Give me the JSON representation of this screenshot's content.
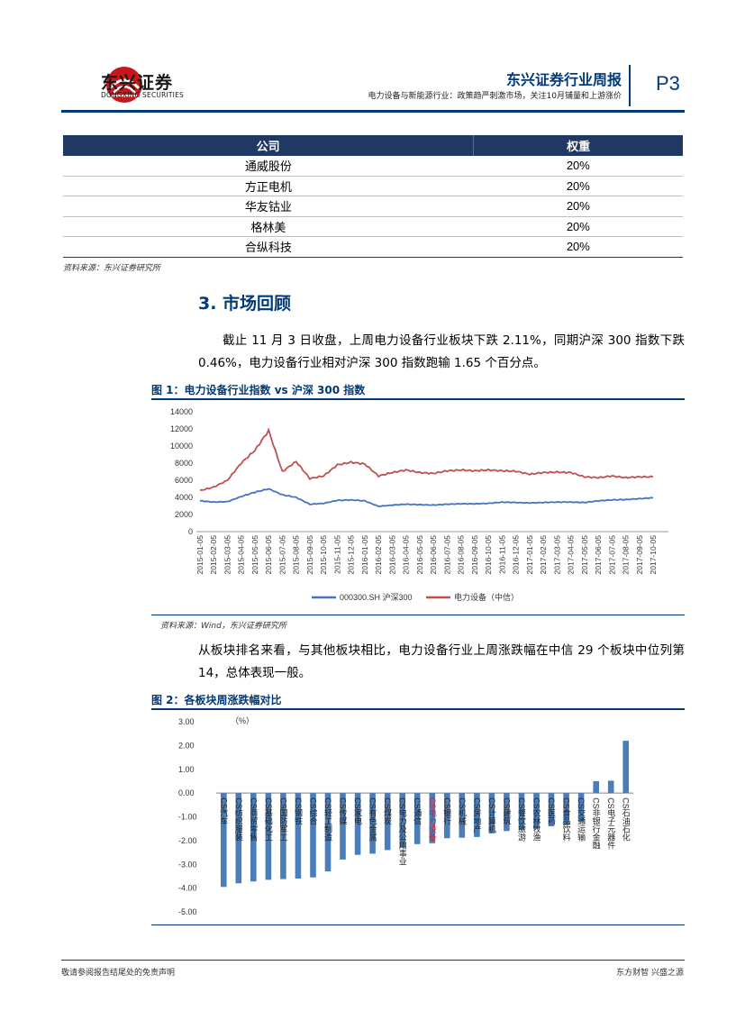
{
  "header": {
    "logo_cn": "东兴证券",
    "logo_en": "DONGXING SECURITIES",
    "title": "东兴证券行业周报",
    "subtitle": "电力设备与新能源行业：政策趋严刺激市场，关注10月铺量和上游涨价",
    "page": "P3",
    "brand_color": "#c8161d",
    "accent_color": "#003a78"
  },
  "table": {
    "headers": [
      "公司",
      "权重"
    ],
    "rows": [
      [
        "通威股份",
        "20%"
      ],
      [
        "方正电机",
        "20%"
      ],
      [
        "华友钴业",
        "20%"
      ],
      [
        "格林美",
        "20%"
      ],
      [
        "合纵科技",
        "20%"
      ]
    ],
    "source": "资料来源：东兴证券研究所"
  },
  "section": {
    "title": "3. 市场回顾",
    "para1": "截止 11 月 3 日收盘，上周电力设备行业板块下跌 2.11%，同期沪深 300 指数下跌 0.46%，电力设备行业相对沪深 300 指数跑输 1.65 个百分点。",
    "para2": "从板块排名来看，与其他板块相比，电力设备行业上周涨跌幅在中信 29 个板块中位列第 14，总体表现一般。"
  },
  "fig1": {
    "title": "图 1：电力设备行业指数 vs 沪深 300 指数",
    "source": "资料来源：Wind，东兴证券研究所"
  },
  "fig2": {
    "title": "图 2：各板块周涨跌幅对比"
  },
  "footer": {
    "left": "敬请参阅报告结尾处的免责声明",
    "right": "东方财智 兴盛之源"
  },
  "chart_data": [
    {
      "type": "line",
      "title": "",
      "ylim": [
        0,
        14000
      ],
      "yticks": [
        0,
        2000,
        4000,
        6000,
        8000,
        10000,
        12000,
        14000
      ],
      "x": [
        "2015-01-05",
        "2015-02-05",
        "2015-03-05",
        "2015-04-05",
        "2015-05-05",
        "2015-06-05",
        "2015-07-05",
        "2015-08-05",
        "2015-09-05",
        "2015-10-05",
        "2015-11-05",
        "2015-12-05",
        "2016-01-05",
        "2016-02-05",
        "2016-03-05",
        "2016-04-05",
        "2016-05-05",
        "2016-06-05",
        "2016-07-05",
        "2016-08-05",
        "2016-09-05",
        "2016-10-05",
        "2016-11-05",
        "2016-12-05",
        "2017-01-05",
        "2017-02-05",
        "2017-03-05",
        "2017-04-05",
        "2017-05-05",
        "2017-06-05",
        "2017-07-05",
        "2017-08-05",
        "2017-09-05",
        "2017-10-05"
      ],
      "series": [
        {
          "name": "000300.SH 沪深300",
          "color": "#4472c4",
          "values": [
            3600,
            3450,
            3500,
            4100,
            4600,
            5000,
            4300,
            4000,
            3200,
            3300,
            3650,
            3700,
            3600,
            2950,
            3100,
            3200,
            3150,
            3100,
            3200,
            3250,
            3250,
            3300,
            3450,
            3400,
            3350,
            3400,
            3450,
            3450,
            3400,
            3600,
            3700,
            3750,
            3850,
            3950
          ]
        },
        {
          "name": "电力设备（中信）",
          "color": "#c0504d",
          "values": [
            4800,
            5200,
            6000,
            8000,
            9500,
            11800,
            7000,
            8200,
            6200,
            6500,
            7800,
            8100,
            7900,
            6500,
            6900,
            7200,
            6900,
            6800,
            7100,
            7200,
            7100,
            7200,
            7100,
            7050,
            6700,
            6900,
            6950,
            6900,
            6400,
            6300,
            6500,
            6300,
            6400,
            6400
          ]
        }
      ],
      "legend": "bottom"
    },
    {
      "type": "bar",
      "title": "",
      "unit_label": "（%）",
      "ylim": [
        -5,
        3
      ],
      "yticks": [
        "3.00",
        "2.00",
        "1.00",
        "0.00",
        "-1.00",
        "-2.00",
        "-3.00",
        "-4.00",
        "-5.00"
      ],
      "categories": [
        "CS汽车",
        "CS纺织服装",
        "CS商贸零售",
        "CS基础化工",
        "CS国防军工",
        "CS钢铁",
        "CS综合",
        "CS轻工制造",
        "CS传媒",
        "CS家电",
        "CS有色金属",
        "CS煤炭",
        "CS电力及公用事业",
        "CS通信",
        "CS电力设备",
        "CS银行",
        "CS机械",
        "CS房地产",
        "CS计算机",
        "CS建筑",
        "CS餐饮旅游",
        "CS农林牧渔",
        "CS医药",
        "CS食品饮料",
        "CS交通运输",
        "CS非银行金融",
        "CS电子元器件",
        "CS石油石化"
      ],
      "values": [
        -3.95,
        -3.8,
        -3.72,
        -3.65,
        -3.62,
        -3.6,
        -3.55,
        -3.3,
        -2.8,
        -2.6,
        -2.55,
        -2.4,
        -2.3,
        -2.15,
        -2.11,
        -1.9,
        -1.88,
        -1.85,
        -1.7,
        -1.6,
        -1.55,
        -1.5,
        -1.4,
        -1.35,
        -1.2,
        0.5,
        0.52,
        2.2
      ],
      "bar_color": "#4a7ebb",
      "highlight_color": "#e02020",
      "highlight": "CS电力设备"
    }
  ]
}
